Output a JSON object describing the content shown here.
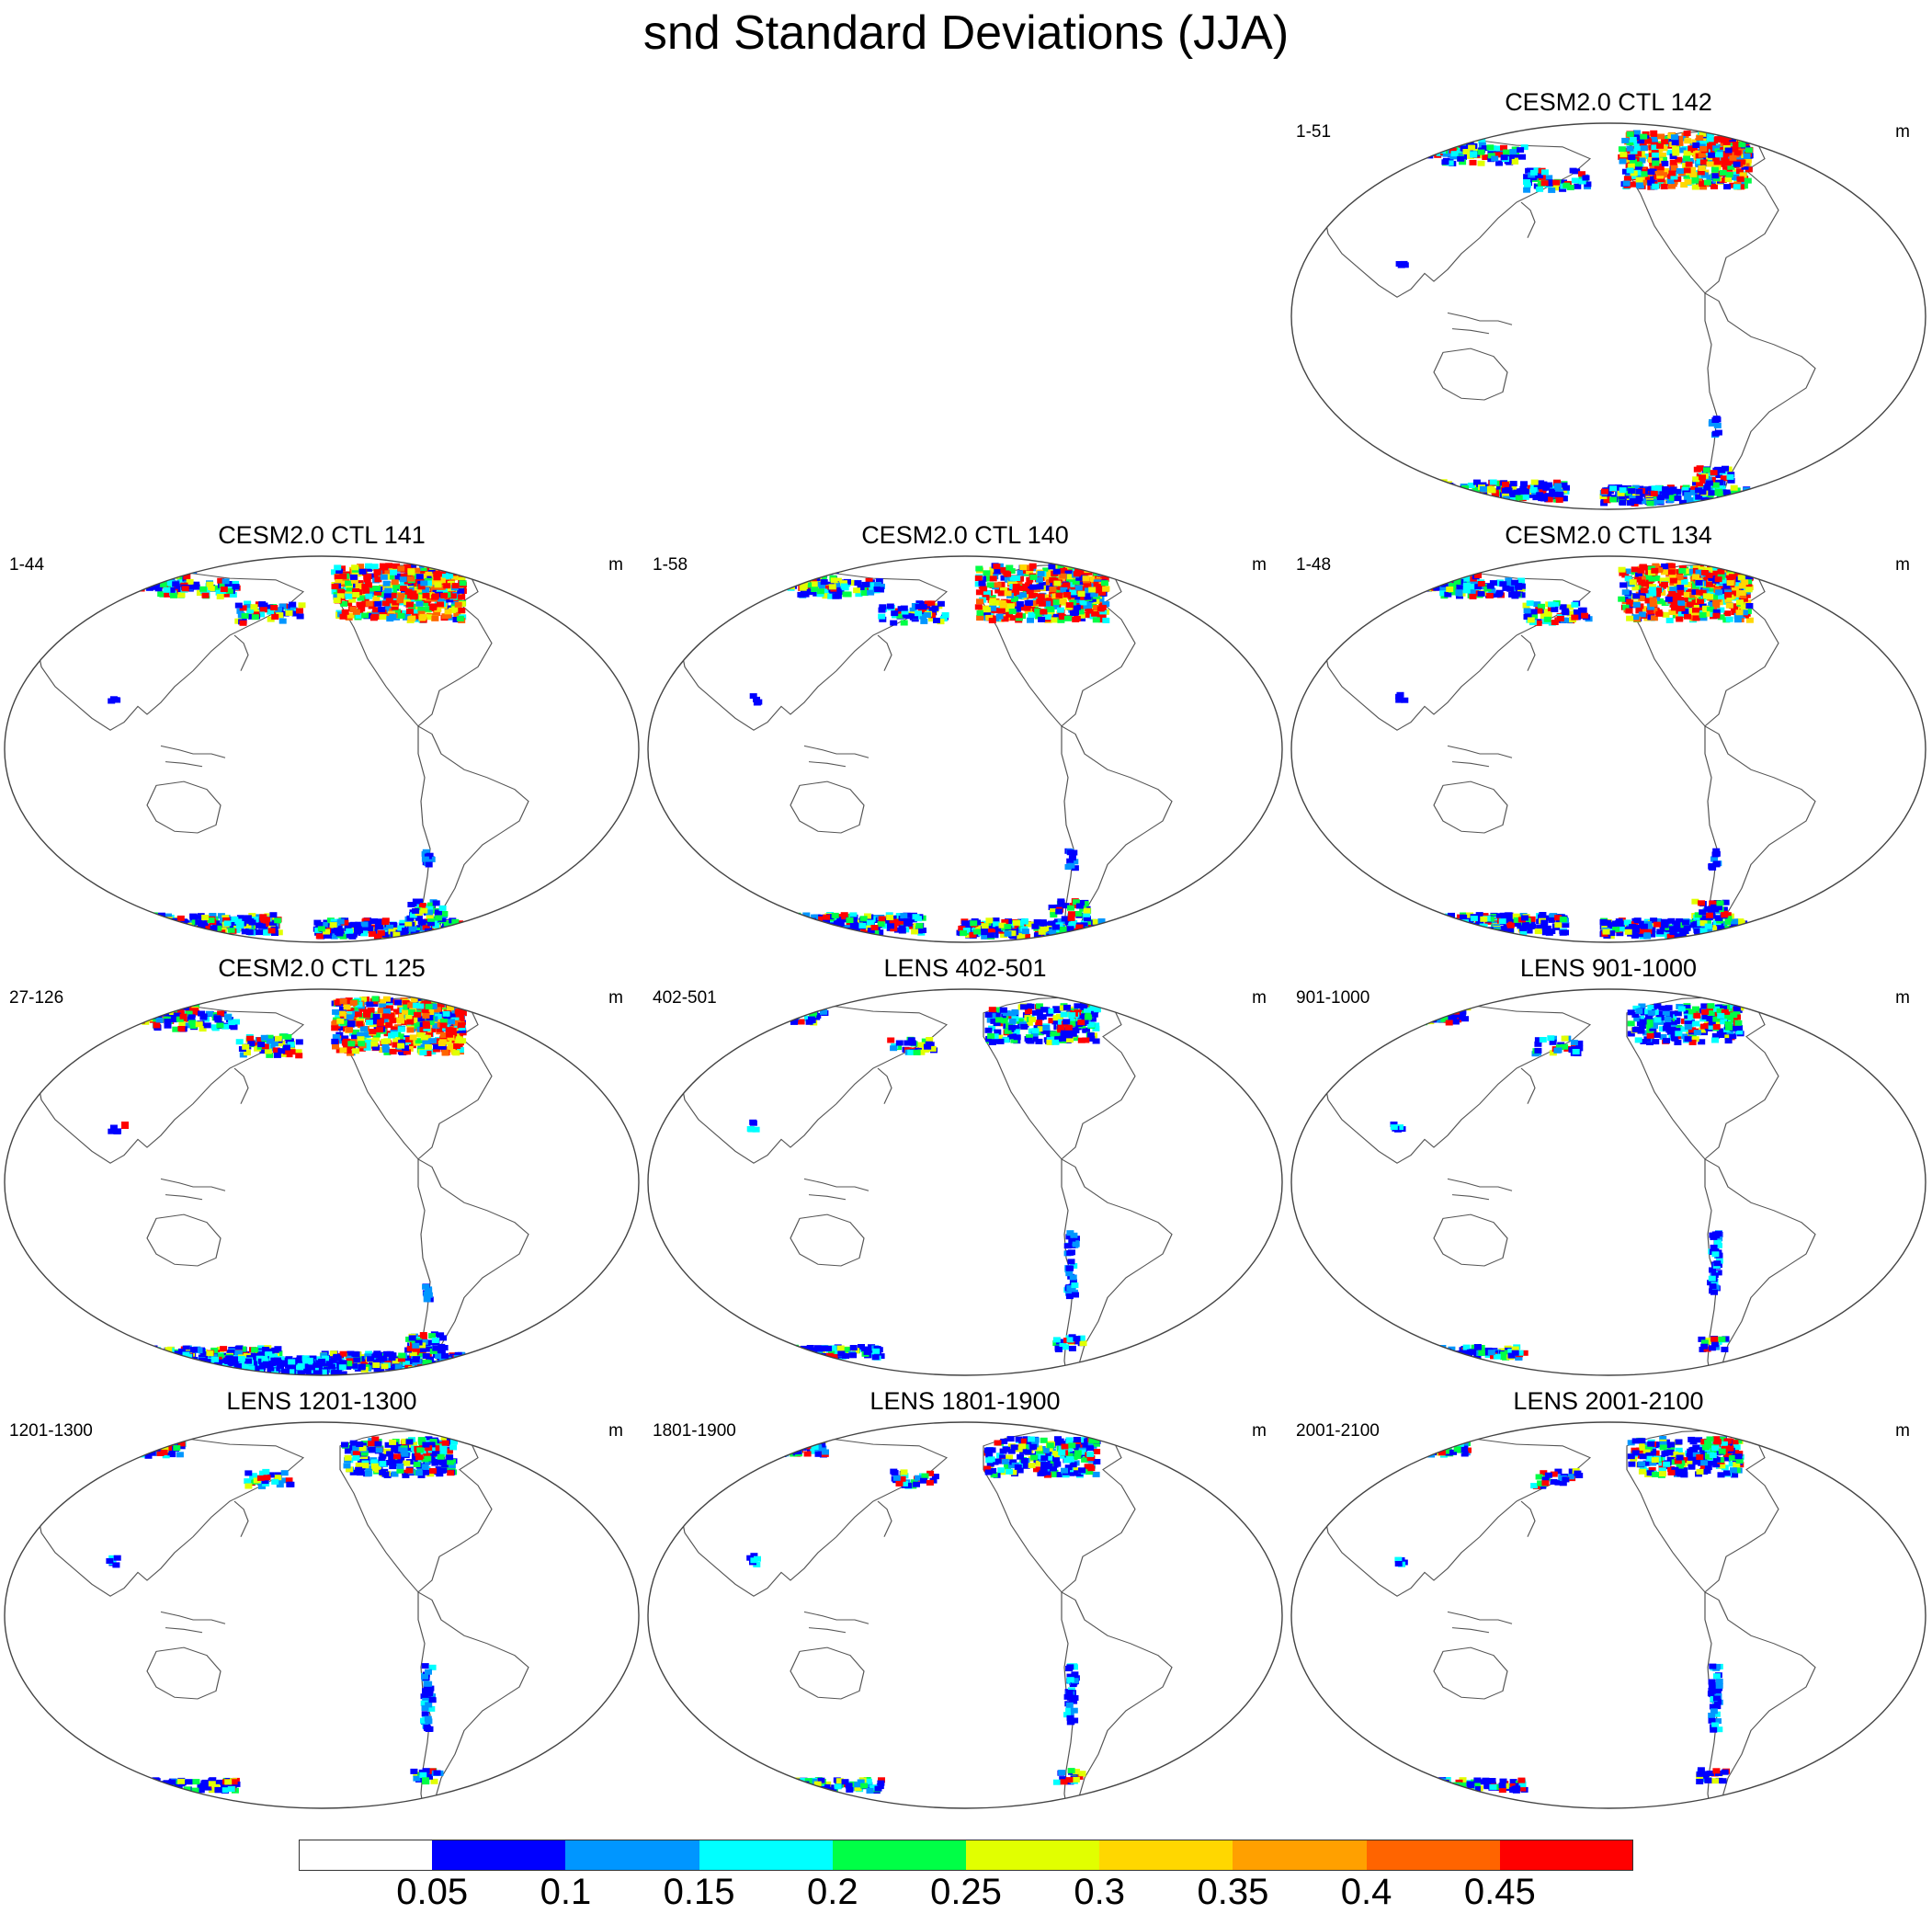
{
  "title": "snd Standard Deviations (JJA)",
  "panels": [
    {
      "title": "CESM2.0 CTL 142",
      "years": "1-51",
      "units": "m",
      "style": "ctl"
    },
    {
      "title": "CESM2.0 CTL 141",
      "years": "1-44",
      "units": "m",
      "style": "ctl"
    },
    {
      "title": "CESM2.0 CTL 140",
      "years": "1-58",
      "units": "m",
      "style": "ctl"
    },
    {
      "title": "CESM2.0 CTL 134",
      "years": "1-48",
      "units": "m",
      "style": "ctl"
    },
    {
      "title": "CESM2.0 CTL 125",
      "years": "27-126",
      "units": "m",
      "style": "ctl125"
    },
    {
      "title": "LENS 402-501",
      "years": "402-501",
      "units": "m",
      "style": "lens"
    },
    {
      "title": "LENS 901-1000",
      "years": "901-1000",
      "units": "m",
      "style": "lens"
    },
    {
      "title": "LENS 1201-1300",
      "years": "1201-1300",
      "units": "m",
      "style": "lens"
    },
    {
      "title": "LENS 1801-1900",
      "years": "1801-1900",
      "units": "m",
      "style": "lens"
    },
    {
      "title": "LENS 2001-2100",
      "years": "2001-2100",
      "units": "m",
      "style": "lens"
    }
  ],
  "colorbar": {
    "labels": [
      "0.05",
      "0.1",
      "0.15",
      "0.2",
      "0.25",
      "0.3",
      "0.35",
      "0.4",
      "0.45"
    ],
    "colors": [
      "#ffffff",
      "#0000ff",
      "#0096ff",
      "#00ffff",
      "#00ff46",
      "#e1ff00",
      "#ffd700",
      "#ffa000",
      "#ff6400",
      "#ff0000"
    ]
  }
}
